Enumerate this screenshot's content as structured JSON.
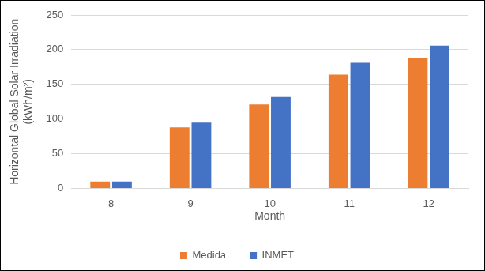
{
  "chart_data": {
    "type": "bar",
    "categories": [
      "8",
      "9",
      "10",
      "11",
      "12"
    ],
    "x_label": "Month",
    "y_label": "Horizontal Global Solar Irradiation (kWh/m²)",
    "series": [
      {
        "name": "Medida",
        "color": "#ed7d31",
        "values": [
          10,
          88,
          121,
          164,
          188
        ]
      },
      {
        "name": "INMET",
        "color": "#4472c4",
        "values": [
          10,
          95,
          132,
          181,
          206
        ]
      }
    ],
    "ylim": [
      0,
      250
    ],
    "yticks": [
      0,
      50,
      100,
      150,
      200,
      250
    ],
    "grid": true,
    "legend": "bottom"
  }
}
